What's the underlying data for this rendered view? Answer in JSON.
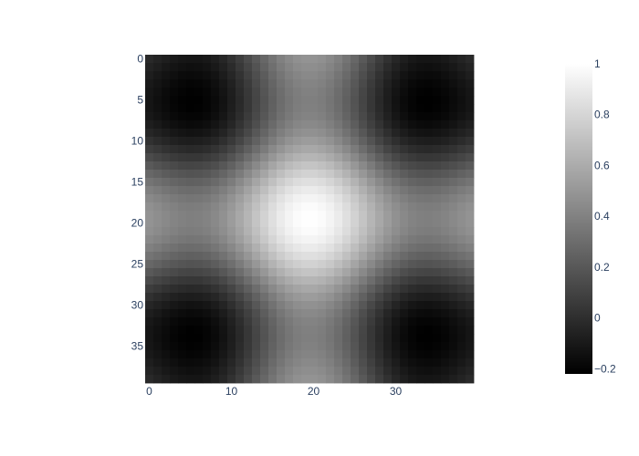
{
  "chart_data": {
    "type": "heatmap",
    "title": "",
    "xlabel": "",
    "ylabel": "",
    "grid_size": [
      40,
      40
    ],
    "value_formula": "0.5 * (sinc(x - 19.5) + sinc(y - 19.5)), where sinc(t) = sin(pi*t*0.1)/(pi*t*0.1)",
    "x_range": [
      0,
      39
    ],
    "y_range": [
      0,
      39
    ],
    "y_axis_reversed": true,
    "x_ticks": [
      0,
      10,
      20,
      30
    ],
    "x_tick_labels": [
      "0",
      "10",
      "20",
      "30"
    ],
    "y_ticks": [
      0,
      5,
      10,
      15,
      20,
      25,
      30,
      35
    ],
    "y_tick_labels": [
      "0",
      "5",
      "10",
      "15",
      "20",
      "25",
      "30",
      "35"
    ],
    "colorscale": [
      "#000000",
      "#ffffff"
    ],
    "zmin": -0.22,
    "zmax": 1.0,
    "colorbar_ticks": [
      1,
      0.8,
      0.6,
      0.4,
      0.2,
      0,
      -0.2
    ],
    "colorbar_tick_labels": [
      "1",
      "0.8",
      "0.6",
      "0.4",
      "0.2",
      "0",
      "−0.2"
    ],
    "tick_label_color": "#2a3f5f"
  }
}
